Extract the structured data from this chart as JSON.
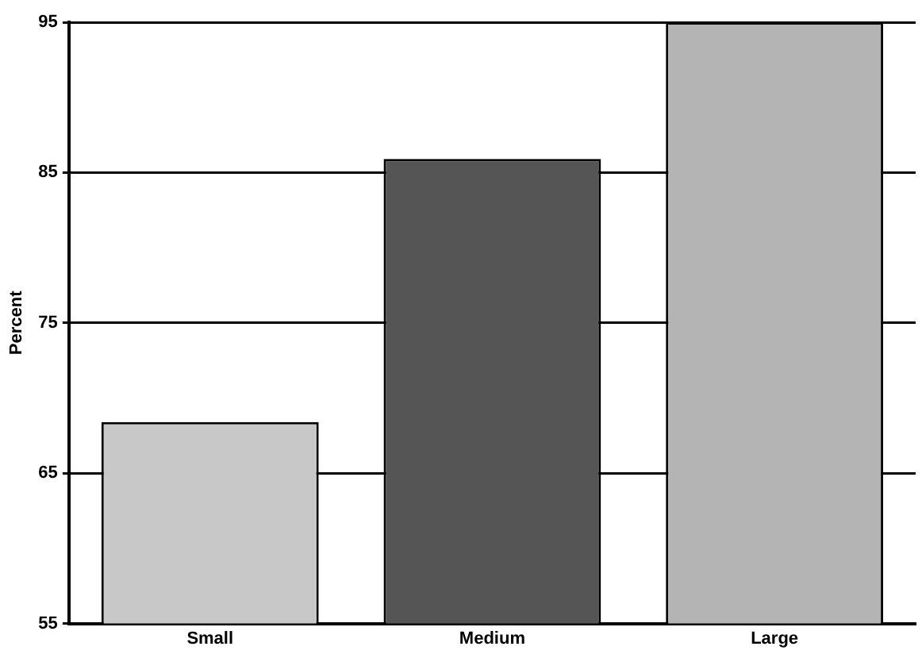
{
  "chart_data": {
    "type": "bar",
    "ylabel": "Percent",
    "categories": [
      "Small",
      "Medium",
      "Large"
    ],
    "values": [
      68.4,
      85.9,
      95
    ],
    "colors": [
      "#c8c8c8",
      "#555555",
      "#b4b4b4"
    ],
    "ylim": [
      55,
      95
    ],
    "yticks": [
      55,
      65,
      75,
      85,
      95
    ],
    "grid": "y"
  }
}
